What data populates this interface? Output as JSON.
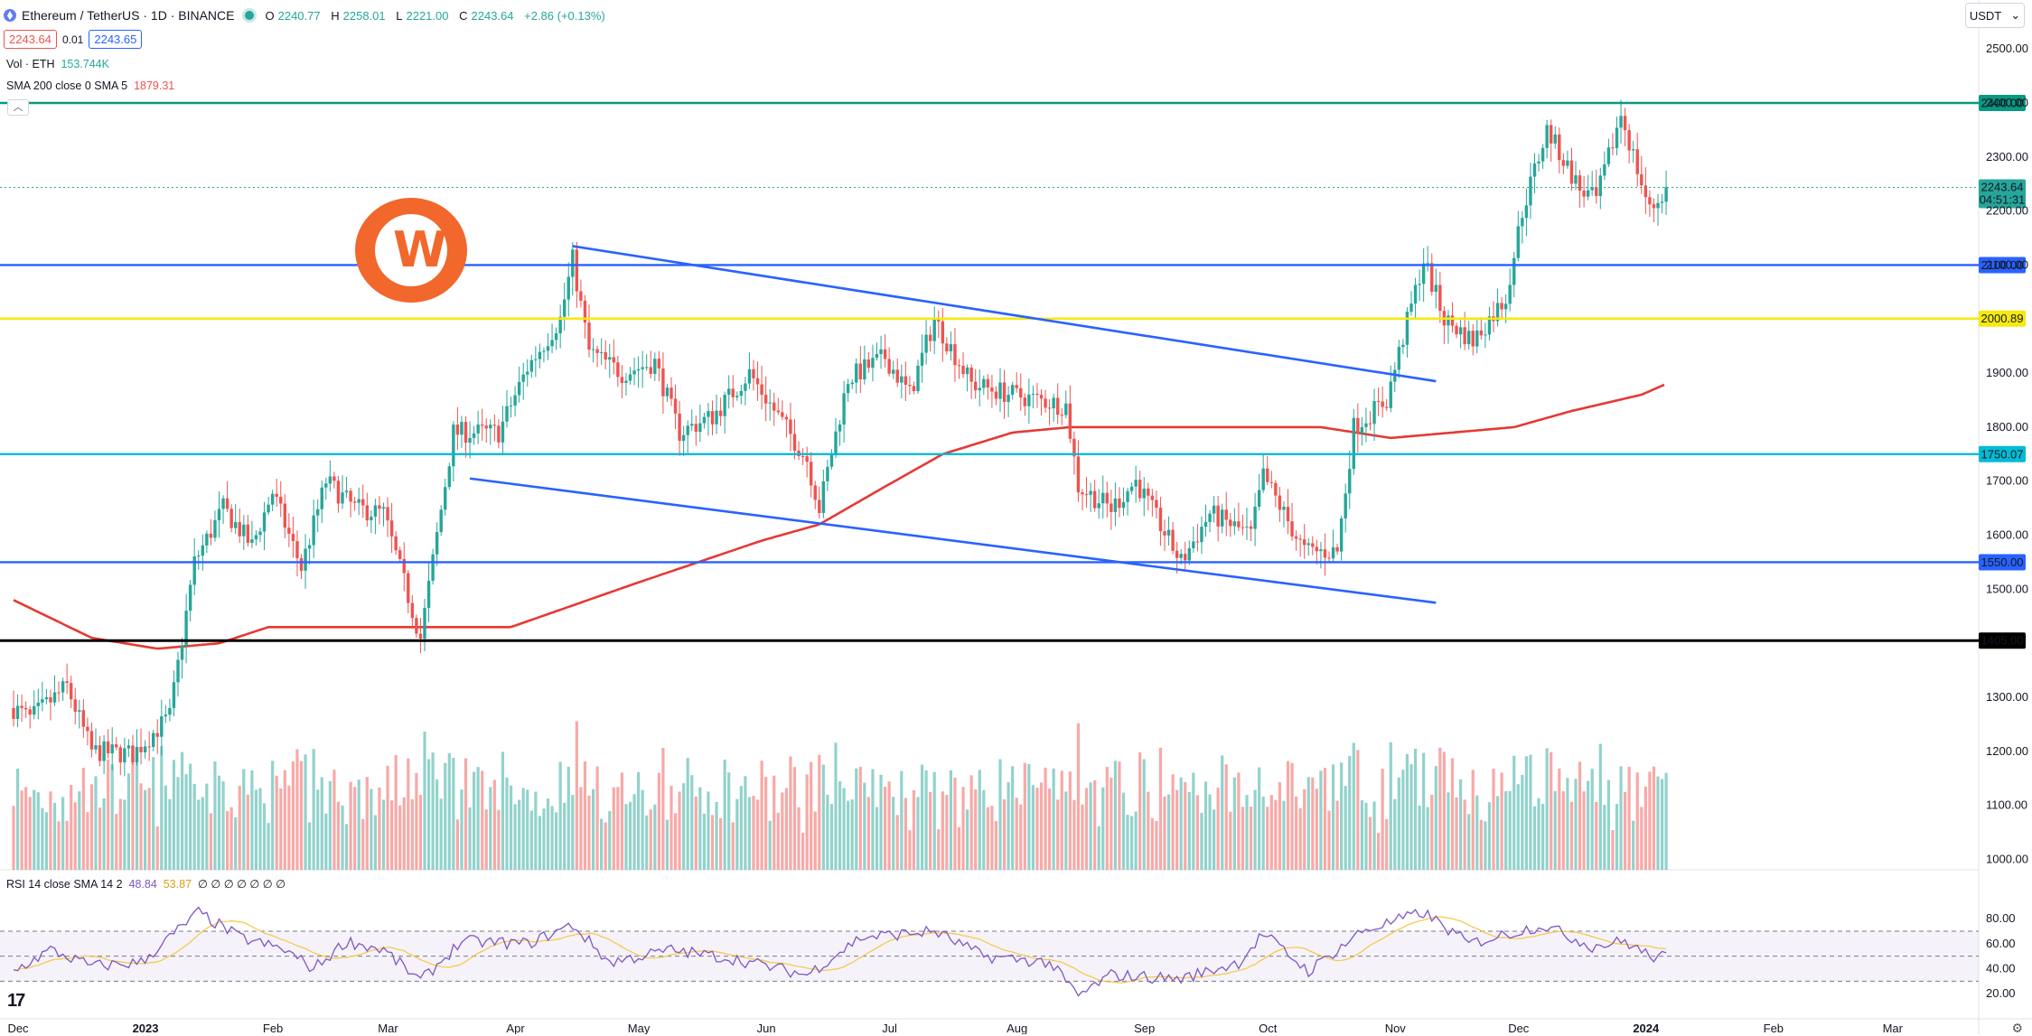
{
  "header": {
    "title": "Ethereum / TetherUS · 1D · BINANCE",
    "ohlc": {
      "o_label": "O",
      "o": "2240.77",
      "h_label": "H",
      "h": "2258.01",
      "l_label": "L",
      "l": "2221.00",
      "c_label": "C",
      "c": "2243.64",
      "change": "+2.86 (+0.13%)"
    },
    "sell_price": "2243.64",
    "spread": "0.01",
    "buy_price": "2243.65"
  },
  "indicators": {
    "vol_label": "Vol · ETH",
    "vol_value": "153.744K",
    "sma_label": "SMA 200 close 0 SMA 5",
    "sma_value": "1879.31",
    "rsi_label": "RSI 14 close SMA 14 2",
    "rsi_value": "48.84",
    "rsi_sma_value": "53.87",
    "rsi_zeros": "∅ ∅ ∅ ∅ ∅ ∅ ∅"
  },
  "currency_selector": "USDT",
  "colors": {
    "up": "#26a69a",
    "down": "#ef5350",
    "sma": "#e53935",
    "trendline": "#2962ff",
    "rsi": "#7e57c2",
    "rsi_sma": "#f5c842",
    "brand": "#f1672c"
  },
  "icons": [
    "ethereum-icon",
    "live-dot-icon",
    "chevron-up-icon",
    "chevron-down-icon",
    "brand-logo-icon",
    "tradingview-logo-icon",
    "settings-icon"
  ],
  "chart_data": {
    "type": "candlestick",
    "symbol": "ETHUSDT",
    "timeframe": "1D",
    "x_ticks": [
      "Dec",
      "2023",
      "Feb",
      "Mar",
      "Apr",
      "May",
      "Jun",
      "Jul",
      "Aug",
      "Sep",
      "Oct",
      "Nov",
      "Dec",
      "2024",
      "Feb",
      "Mar"
    ],
    "y_ticks": [
      2500,
      2400,
      2300,
      2200,
      2100,
      1900,
      1800,
      1700,
      1600,
      1500,
      1300,
      1200,
      1100,
      1000
    ],
    "ylim": [
      990,
      2510
    ],
    "current_price_label": "2243.64",
    "countdown_label": "04:51:31",
    "horizontal_levels": [
      {
        "value": 2400,
        "label": "2400.00",
        "color": "#089981"
      },
      {
        "value": 2100,
        "label": "2100.00",
        "color": "#2962ff"
      },
      {
        "value": 2000.89,
        "label": "2000.89",
        "color": "#f5e90d"
      },
      {
        "value": 1750.07,
        "label": "1750.07",
        "color": "#00bcd4"
      },
      {
        "value": 1550,
        "label": "1550.00",
        "color": "#2962ff"
      },
      {
        "value": 1405,
        "label": "1405.00",
        "color": "#000000"
      }
    ],
    "trendlines": [
      {
        "from": [
          "2023-04-16",
          2135
        ],
        "to": [
          "2023-11-12",
          1885
        ]
      },
      {
        "from": [
          "2023-03-22",
          1705
        ],
        "to": [
          "2023-11-12",
          1475
        ]
      }
    ],
    "price_path": [
      [
        "2022-12-01",
        1280
      ],
      [
        "2022-12-05",
        1260
      ],
      [
        "2022-12-14",
        1320
      ],
      [
        "2022-12-20",
        1200
      ],
      [
        "2022-12-30",
        1195
      ],
      [
        "2023-01-08",
        1265
      ],
      [
        "2023-01-14",
        1550
      ],
      [
        "2023-01-21",
        1650
      ],
      [
        "2023-01-28",
        1580
      ],
      [
        "2023-02-02",
        1680
      ],
      [
        "2023-02-09",
        1540
      ],
      [
        "2023-02-15",
        1700
      ],
      [
        "2023-02-22",
        1650
      ],
      [
        "2023-03-01",
        1640
      ],
      [
        "2023-03-10",
        1410
      ],
      [
        "2023-03-18",
        1790
      ],
      [
        "2023-03-29",
        1790
      ],
      [
        "2023-04-05",
        1910
      ],
      [
        "2023-04-13",
        2000
      ],
      [
        "2023-04-16",
        2110
      ],
      [
        "2023-04-20",
        1940
      ],
      [
        "2023-04-28",
        1900
      ],
      [
        "2023-05-06",
        1920
      ],
      [
        "2023-05-12",
        1790
      ],
      [
        "2023-05-20",
        1820
      ],
      [
        "2023-05-29",
        1900
      ],
      [
        "2023-06-05",
        1820
      ],
      [
        "2023-06-12",
        1740
      ],
      [
        "2023-06-15",
        1650
      ],
      [
        "2023-06-22",
        1890
      ],
      [
        "2023-07-01",
        1930
      ],
      [
        "2023-07-07",
        1860
      ],
      [
        "2023-07-13",
        2000
      ],
      [
        "2023-07-22",
        1880
      ],
      [
        "2023-08-01",
        1860
      ],
      [
        "2023-08-14",
        1840
      ],
      [
        "2023-08-17",
        1690
      ],
      [
        "2023-08-25",
        1650
      ],
      [
        "2023-08-31",
        1700
      ],
      [
        "2023-09-11",
        1550
      ],
      [
        "2023-09-18",
        1640
      ],
      [
        "2023-09-28",
        1600
      ],
      [
        "2023-10-01",
        1710
      ],
      [
        "2023-10-11",
        1570
      ],
      [
        "2023-10-19",
        1570
      ],
      [
        "2023-10-23",
        1800
      ],
      [
        "2023-10-31",
        1850
      ],
      [
        "2023-11-09",
        2110
      ],
      [
        "2023-11-14",
        2000
      ],
      [
        "2023-11-21",
        1960
      ],
      [
        "2023-11-29",
        2040
      ],
      [
        "2023-12-03",
        2200
      ],
      [
        "2023-12-09",
        2350
      ],
      [
        "2023-12-17",
        2240
      ],
      [
        "2023-12-21",
        2220
      ],
      [
        "2023-12-27",
        2380
      ],
      [
        "2024-01-03",
        2200
      ],
      [
        "2024-01-07",
        2240
      ]
    ],
    "sma200_path": [
      [
        "2022-12-01",
        1480
      ],
      [
        "2022-12-20",
        1410
      ],
      [
        "2023-01-05",
        1390
      ],
      [
        "2023-01-20",
        1400
      ],
      [
        "2023-02-01",
        1430
      ],
      [
        "2023-03-01",
        1430
      ],
      [
        "2023-04-01",
        1430
      ],
      [
        "2023-05-01",
        1510
      ],
      [
        "2023-06-01",
        1590
      ],
      [
        "2023-06-15",
        1620
      ],
      [
        "2023-07-01",
        1690
      ],
      [
        "2023-07-15",
        1750
      ],
      [
        "2023-08-01",
        1790
      ],
      [
        "2023-08-15",
        1800
      ],
      [
        "2023-09-15",
        1800
      ],
      [
        "2023-10-15",
        1800
      ],
      [
        "2023-11-01",
        1780
      ],
      [
        "2023-12-01",
        1800
      ],
      [
        "2023-12-15",
        1830
      ],
      [
        "2024-01-01",
        1860
      ],
      [
        "2024-01-07",
        1880
      ]
    ],
    "rsi": {
      "ticks": [
        80,
        60,
        40,
        20
      ],
      "bands": [
        70,
        50,
        30
      ],
      "path": [
        [
          "2022-12-01",
          38
        ],
        [
          "2022-12-10",
          55
        ],
        [
          "2022-12-20",
          42
        ],
        [
          "2023-01-01",
          45
        ],
        [
          "2023-01-15",
          85
        ],
        [
          "2023-01-25",
          65
        ],
        [
          "2023-02-05",
          55
        ],
        [
          "2023-02-12",
          40
        ],
        [
          "2023-02-20",
          62
        ],
        [
          "2023-03-01",
          55
        ],
        [
          "2023-03-10",
          30
        ],
        [
          "2023-03-20",
          62
        ],
        [
          "2023-04-05",
          60
        ],
        [
          "2023-04-16",
          75
        ],
        [
          "2023-04-25",
          45
        ],
        [
          "2023-05-10",
          55
        ],
        [
          "2023-05-25",
          48
        ],
        [
          "2023-06-12",
          35
        ],
        [
          "2023-06-25",
          65
        ],
        [
          "2023-07-13",
          70
        ],
        [
          "2023-07-25",
          50
        ],
        [
          "2023-08-10",
          45
        ],
        [
          "2023-08-17",
          18
        ],
        [
          "2023-08-25",
          35
        ],
        [
          "2023-09-11",
          32
        ],
        [
          "2023-09-25",
          45
        ],
        [
          "2023-10-01",
          68
        ],
        [
          "2023-10-12",
          38
        ],
        [
          "2023-10-25",
          70
        ],
        [
          "2023-11-09",
          85
        ],
        [
          "2023-11-20",
          60
        ],
        [
          "2023-12-08",
          75
        ],
        [
          "2023-12-20",
          58
        ],
        [
          "2023-12-28",
          62
        ],
        [
          "2024-01-03",
          50
        ],
        [
          "2024-01-07",
          49
        ]
      ]
    }
  }
}
